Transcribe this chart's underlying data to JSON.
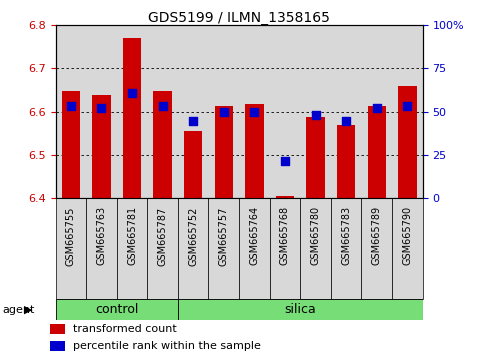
{
  "title": "GDS5199 / ILMN_1358165",
  "samples": [
    "GSM665755",
    "GSM665763",
    "GSM665781",
    "GSM665787",
    "GSM665752",
    "GSM665757",
    "GSM665764",
    "GSM665768",
    "GSM665780",
    "GSM665783",
    "GSM665789",
    "GSM665790"
  ],
  "groups": [
    "control",
    "control",
    "control",
    "control",
    "silica",
    "silica",
    "silica",
    "silica",
    "silica",
    "silica",
    "silica",
    "silica"
  ],
  "red_values": [
    6.648,
    6.638,
    6.77,
    6.648,
    6.555,
    6.612,
    6.618,
    6.405,
    6.588,
    6.568,
    6.612,
    6.658
  ],
  "blue_values": [
    6.612,
    6.608,
    6.642,
    6.612,
    6.578,
    6.6,
    6.6,
    6.487,
    6.592,
    6.578,
    6.608,
    6.612
  ],
  "ylim_left": [
    6.4,
    6.8
  ],
  "ylim_right": [
    0,
    100
  ],
  "yticks_left": [
    6.4,
    6.5,
    6.6,
    6.7,
    6.8
  ],
  "yticks_right": [
    0,
    25,
    50,
    75,
    100
  ],
  "ytick_labels_right": [
    "0",
    "25",
    "50",
    "75",
    "100%"
  ],
  "bar_color": "#cc0000",
  "dot_color": "#0000cc",
  "bar_bottom": 6.4,
  "bar_width": 0.6,
  "control_color": "#77dd77",
  "silica_color": "#77dd77",
  "agent_label": "agent",
  "legend_red": "transformed count",
  "legend_blue": "percentile rank within the sample",
  "n_control": 4,
  "dot_size": 30,
  "col_bg_color": "#d8d8d8",
  "plot_bg_color": "#ffffff"
}
